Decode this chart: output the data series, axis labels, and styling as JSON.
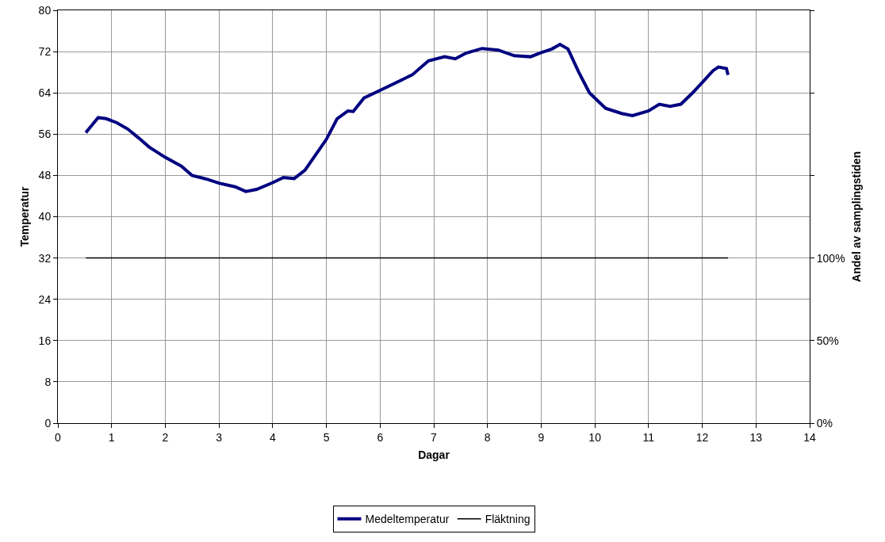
{
  "chart_data": {
    "type": "line",
    "xlabel": "Dagar",
    "ylabel": "Temperatur",
    "y2label": "Andel av samplingstiden",
    "xlim": [
      0,
      14
    ],
    "xticks": [
      0,
      1,
      2,
      3,
      4,
      5,
      6,
      7,
      8,
      9,
      10,
      11,
      12,
      13,
      14
    ],
    "ylim": [
      0,
      80
    ],
    "yticks": [
      0,
      8,
      16,
      24,
      32,
      40,
      48,
      56,
      64,
      72,
      80
    ],
    "y2lim": [
      0,
      250
    ],
    "y2ticks": [
      {
        "value": 0,
        "label": "0%"
      },
      {
        "value": 50,
        "label": "50%"
      },
      {
        "value": 100,
        "label": "100%"
      },
      {
        "value": 150,
        "label": null
      },
      {
        "value": 200,
        "label": null
      },
      {
        "value": 250,
        "label": null
      }
    ],
    "grid": true,
    "legend": "bottom",
    "marker": "none",
    "line_style": "solid",
    "series": [
      {
        "name": "Medeltemperatur",
        "color": "#000080",
        "x": [
          0.52,
          0.6,
          0.75,
          0.9,
          1.1,
          1.3,
          1.5,
          1.7,
          2.0,
          2.3,
          2.5,
          2.8,
          3.0,
          3.3,
          3.5,
          3.7,
          4.0,
          4.2,
          4.4,
          4.6,
          4.8,
          5.0,
          5.2,
          5.4,
          5.5,
          5.7,
          6.0,
          6.3,
          6.6,
          6.9,
          7.2,
          7.4,
          7.6,
          7.9,
          8.2,
          8.5,
          8.8,
          9.0,
          9.2,
          9.35,
          9.5,
          9.7,
          9.9,
          10.2,
          10.5,
          10.7,
          11.0,
          11.2,
          11.4,
          11.6,
          11.8,
          12.0,
          12.2,
          12.3,
          12.45,
          12.48
        ],
        "values": [
          56.3,
          57.3,
          59.2,
          59.0,
          58.2,
          57.0,
          55.3,
          53.5,
          51.5,
          49.8,
          48.0,
          47.2,
          46.5,
          45.8,
          44.9,
          45.3,
          46.6,
          47.6,
          47.4,
          49.0,
          52.0,
          55.0,
          59.0,
          60.5,
          60.4,
          63.0,
          64.5,
          66.0,
          67.5,
          70.2,
          71.0,
          70.6,
          71.7,
          72.6,
          72.3,
          71.2,
          71.0,
          71.8,
          72.5,
          73.4,
          72.5,
          68.0,
          64.0,
          61.0,
          60.0,
          59.6,
          60.5,
          61.8,
          61.4,
          61.8,
          63.8,
          66.0,
          68.3,
          69.0,
          68.7,
          67.5
        ]
      },
      {
        "name": "Fläktning",
        "color": "#000000",
        "axis": "y2",
        "x": [
          0.52,
          12.48
        ],
        "values": [
          100,
          100
        ]
      }
    ]
  }
}
